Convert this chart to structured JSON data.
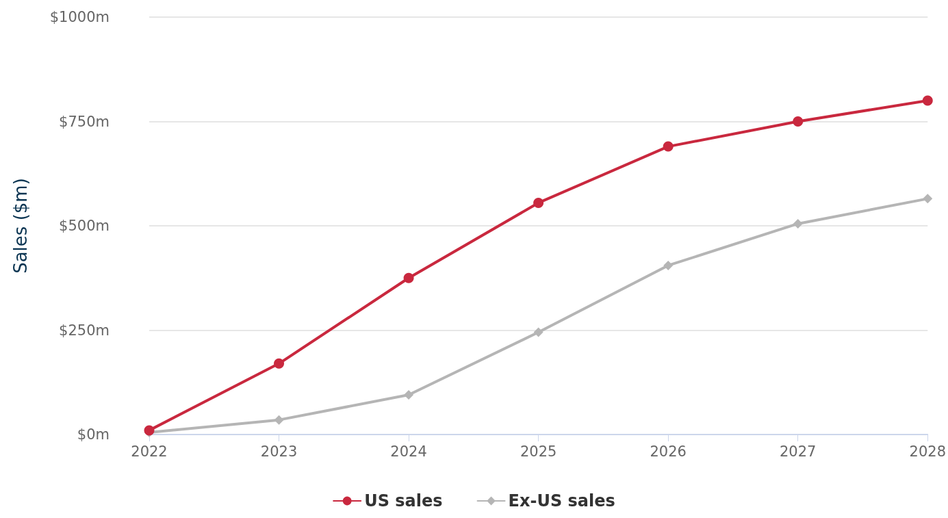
{
  "chart_data": {
    "type": "line",
    "ylabel": "Sales ($m)",
    "categories": [
      "2022",
      "2023",
      "2024",
      "2025",
      "2026",
      "2027",
      "2028"
    ],
    "series": [
      {
        "name": "US sales",
        "color": "#c9283e",
        "marker": "circle",
        "values": [
          10,
          170,
          375,
          555,
          690,
          750,
          800
        ]
      },
      {
        "name": "Ex-US sales",
        "color": "#b5b5b5",
        "marker": "diamond",
        "values": [
          5,
          35,
          95,
          245,
          405,
          505,
          565
        ]
      }
    ],
    "ylim": [
      0,
      1000
    ],
    "yticks": [
      {
        "value": 0,
        "label": "$0m"
      },
      {
        "value": 250,
        "label": "$250m"
      },
      {
        "value": 500,
        "label": "$500m"
      },
      {
        "value": 750,
        "label": "$750m"
      },
      {
        "value": 1000,
        "label": "$1000m"
      }
    ],
    "grid": "y",
    "legend": "bottom",
    "line_style": "solid"
  }
}
